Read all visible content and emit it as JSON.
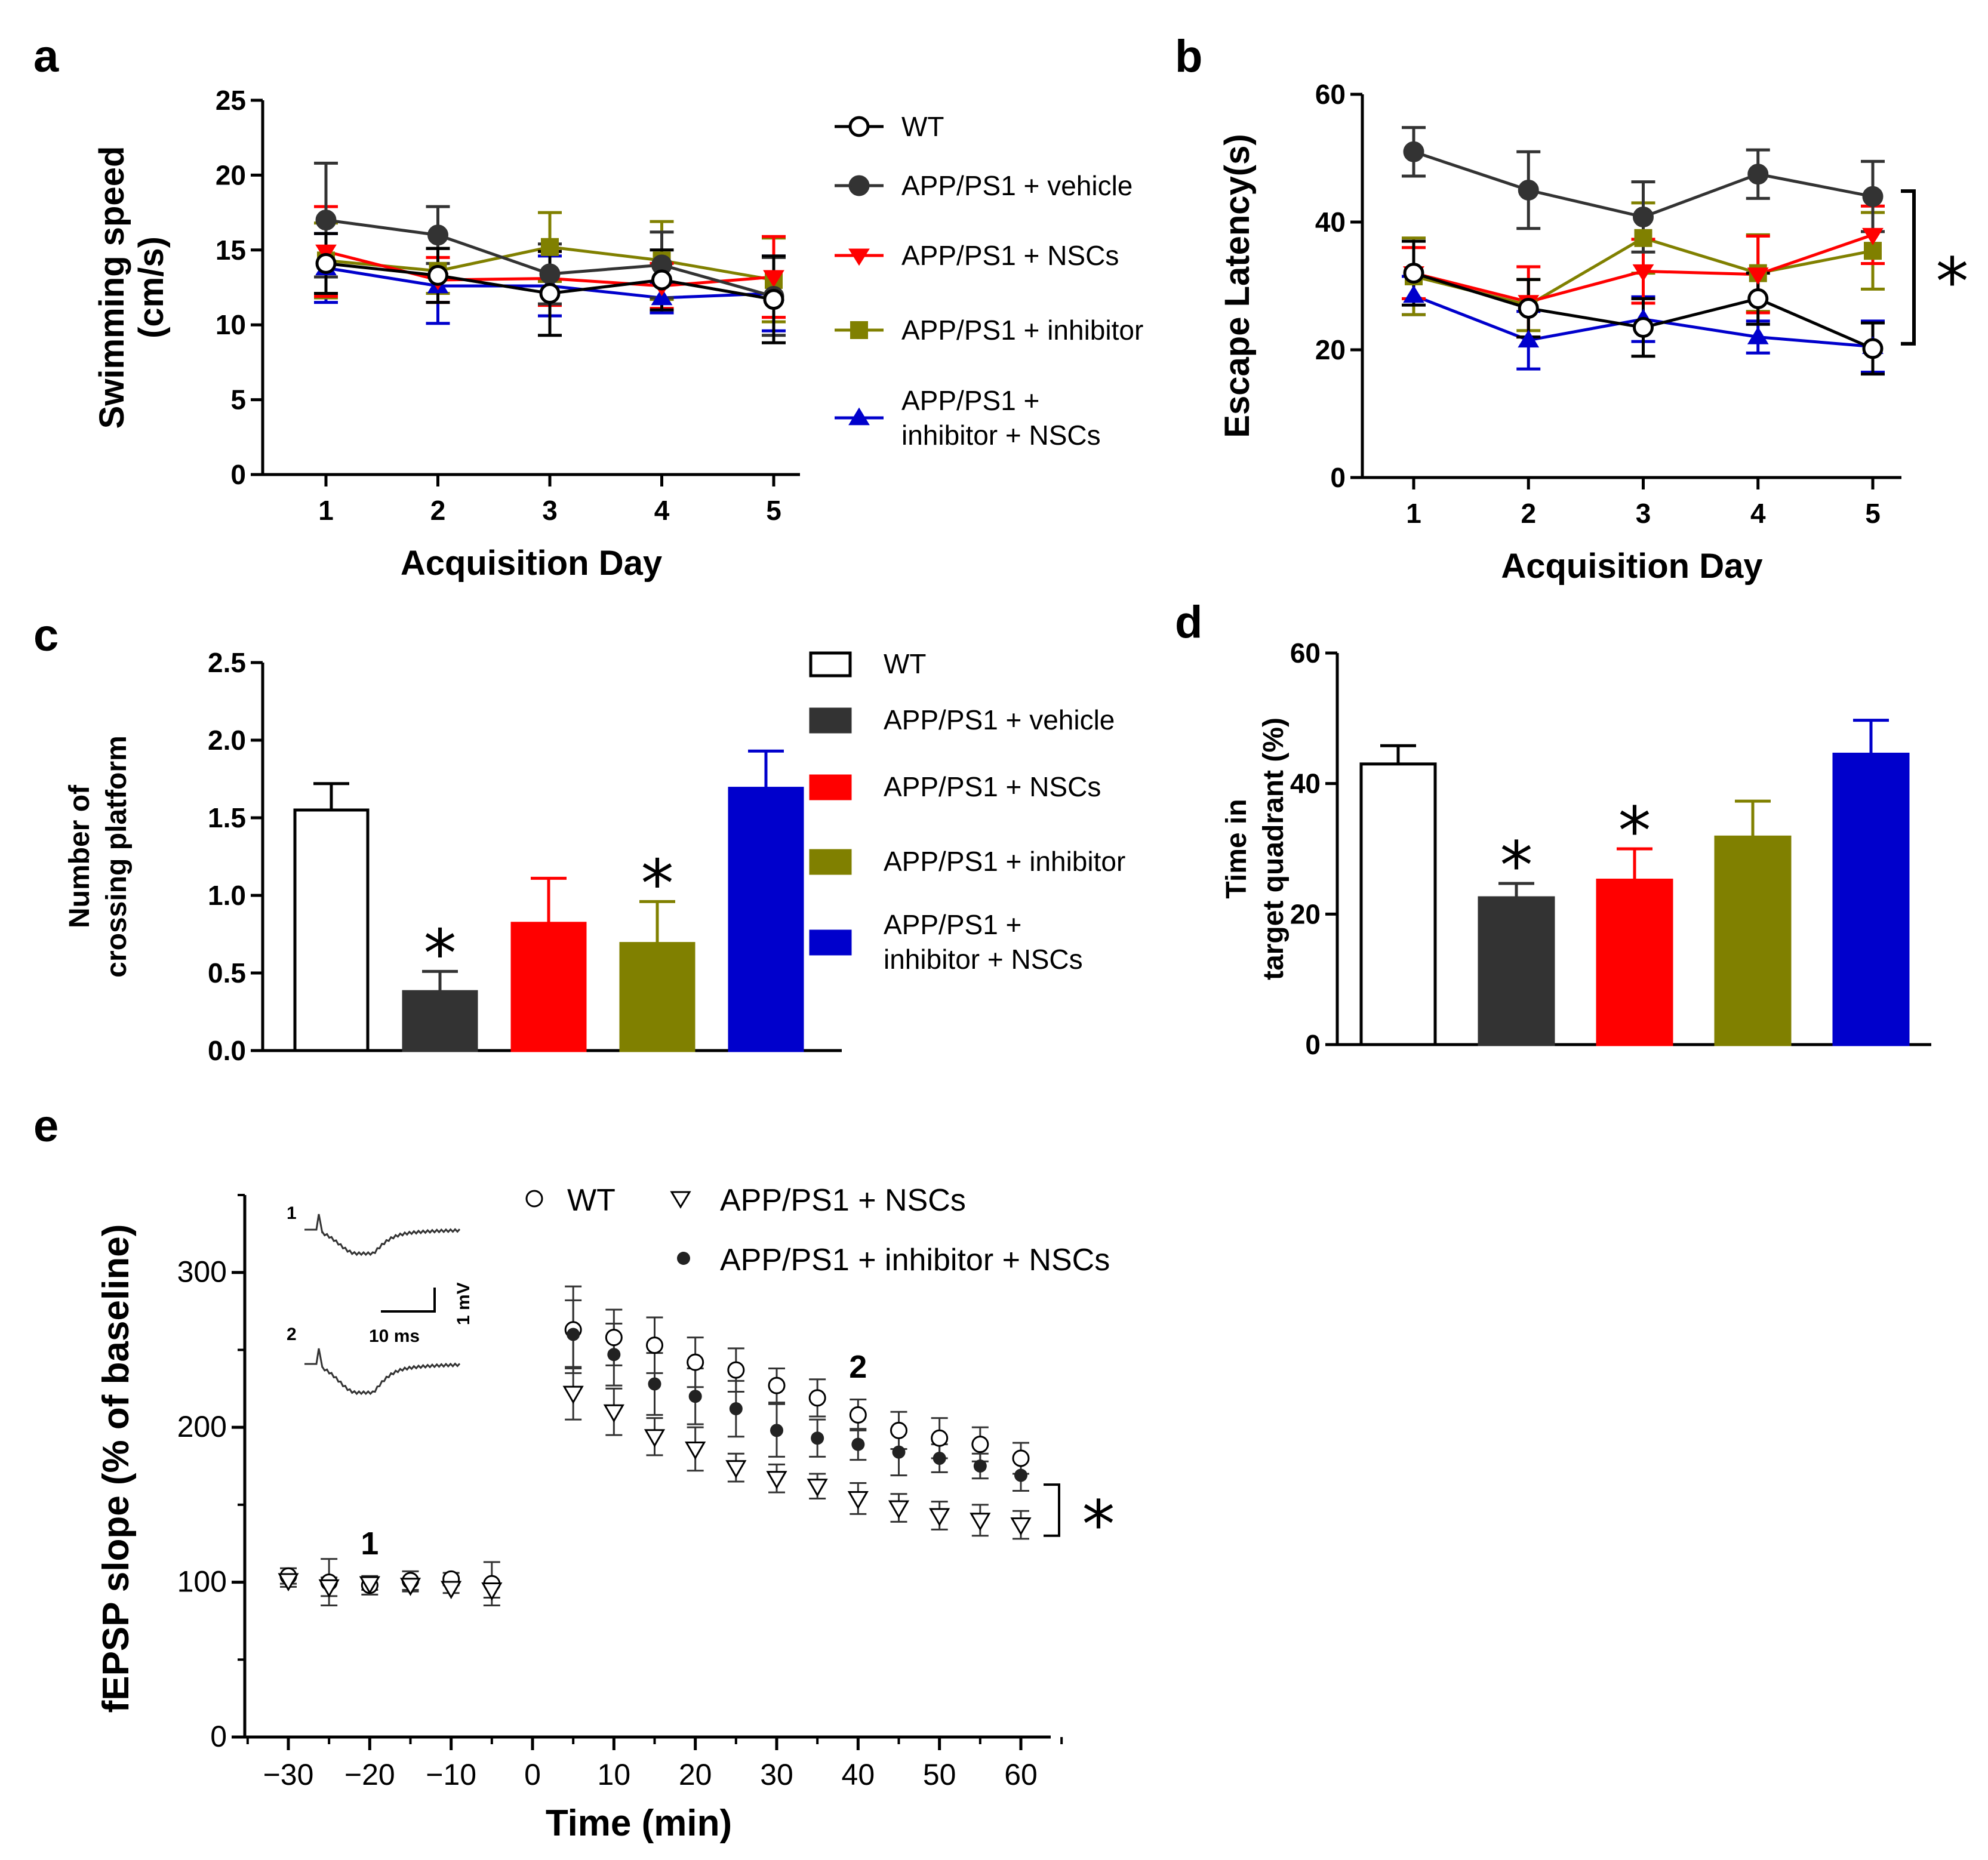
{
  "colors": {
    "wt": "#ffffff",
    "vehicle": "#333333",
    "nscs": "#ff0000",
    "inhibitor": "#808000",
    "inhibitor_nscs": "#0000cc",
    "axis": "#000000"
  },
  "panels": {
    "a": "a",
    "b": "b",
    "c": "c",
    "d": "d",
    "e": "e"
  },
  "legend_groups": [
    "WT",
    "APP/PS1 + vehicle",
    "APP/PS1 + NSCs",
    "APP/PS1 + inhibitor",
    "APP/PS1 +\ninhibitor + NSCs"
  ],
  "legend_e": [
    "WT",
    "APP/PS1 + NSCs",
    "APP/PS1 + inhibitor + NSCs"
  ],
  "significance": "*",
  "chart_data": [
    {
      "panel": "a",
      "type": "line",
      "xlabel": "Acquisition Day",
      "ylabel": "Swimming speed\n(cm/s)",
      "x": [
        1,
        2,
        3,
        4,
        5
      ],
      "xticks": [
        "1",
        "2",
        "3",
        "4",
        "5"
      ],
      "ylim": [
        0,
        25
      ],
      "yticks": [
        0,
        5,
        10,
        15,
        20,
        25
      ],
      "series": [
        {
          "name": "WT",
          "values": [
            14.1,
            13.3,
            12.1,
            13.0,
            11.7
          ],
          "err": [
            2.0,
            1.8,
            2.8,
            2.0,
            2.9
          ]
        },
        {
          "name": "APP/PS1 + vehicle",
          "values": [
            17.0,
            16.0,
            13.4,
            14.0,
            11.9
          ],
          "err": [
            3.8,
            1.9,
            2.0,
            2.2,
            2.6
          ]
        },
        {
          "name": "APP/PS1 + NSCs",
          "values": [
            14.9,
            13.0,
            13.1,
            12.6,
            13.2
          ],
          "err": [
            3.0,
            1.5,
            1.8,
            1.5,
            2.7
          ]
        },
        {
          "name": "APP/PS1 + inhibitor",
          "values": [
            14.3,
            13.6,
            15.2,
            14.3,
            13.0
          ],
          "err": [
            2.5,
            1.5,
            2.3,
            2.6,
            2.8
          ]
        },
        {
          "name": "APP/PS1 + inhibitor + NSCs",
          "values": [
            13.8,
            12.6,
            12.6,
            11.8,
            12.1
          ],
          "err": [
            2.3,
            2.5,
            2.0,
            1.0,
            2.5
          ]
        }
      ]
    },
    {
      "panel": "b",
      "type": "line",
      "xlabel": "Acquisition Day",
      "ylabel": "Escape Latency(s)",
      "x": [
        1,
        2,
        3,
        4,
        5
      ],
      "xticks": [
        "1",
        "2",
        "3",
        "4",
        "5"
      ],
      "ylim": [
        0,
        60
      ],
      "yticks": [
        0,
        20,
        40,
        60
      ],
      "series": [
        {
          "name": "WT",
          "values": [
            32.0,
            26.5,
            23.5,
            28.0,
            20.2
          ],
          "err": [
            5.0,
            4.5,
            4.5,
            4.0,
            4.0
          ]
        },
        {
          "name": "APP/PS1 + vehicle",
          "values": [
            51.0,
            45.0,
            40.8,
            47.5,
            44.0
          ],
          "err": [
            3.8,
            6.0,
            5.5,
            3.8,
            5.5
          ]
        },
        {
          "name": "APP/PS1 + NSCs",
          "values": [
            32.0,
            27.5,
            32.3,
            31.8,
            38.0
          ],
          "err": [
            4.0,
            5.5,
            5.0,
            6.0,
            4.5
          ]
        },
        {
          "name": "APP/PS1 + inhibitor",
          "values": [
            31.5,
            27.0,
            37.5,
            32.0,
            35.5
          ],
          "err": [
            6.0,
            4.0,
            5.5,
            6.0,
            6.0
          ]
        },
        {
          "name": "APP/PS1 + inhibitor + NSCs",
          "values": [
            28.5,
            21.5,
            24.8,
            22.0,
            20.5
          ],
          "err": [
            3.0,
            4.5,
            3.5,
            2.5,
            4.0
          ]
        }
      ],
      "annotation": "*"
    },
    {
      "panel": "c",
      "type": "bar",
      "ylabel": "Number of\ncrossing platform",
      "categories": [
        "WT",
        "APP/PS1 + vehicle",
        "APP/PS1 + NSCs",
        "APP/PS1 + inhibitor",
        "APP/PS1 + inhibitor + NSCs"
      ],
      "values": [
        1.55,
        0.38,
        0.82,
        0.69,
        1.69
      ],
      "err": [
        0.17,
        0.13,
        0.29,
        0.27,
        0.24
      ],
      "stars": [
        false,
        true,
        false,
        true,
        false
      ],
      "ylim": [
        0,
        2.5
      ],
      "yticks": [
        "0.0",
        "0.5",
        "1.0",
        "1.5",
        "2.0",
        "2.5"
      ]
    },
    {
      "panel": "d",
      "type": "bar",
      "ylabel": "Time in\ntarget quadrant (%)",
      "categories": [
        "WT",
        "APP/PS1 + vehicle",
        "APP/PS1 + NSCs",
        "APP/PS1 + inhibitor",
        "APP/PS1 + inhibitor + NSCs"
      ],
      "values": [
        43.0,
        22.5,
        25.2,
        31.8,
        44.5
      ],
      "err": [
        2.8,
        2.2,
        4.8,
        5.5,
        5.2
      ],
      "stars": [
        false,
        true,
        true,
        false,
        false
      ],
      "ylim": [
        0,
        60
      ],
      "yticks": [
        "0",
        "20",
        "40",
        "60"
      ]
    },
    {
      "panel": "e",
      "type": "scatter",
      "xlabel": "Time (min)",
      "ylabel": "fEPSP slope (% of baseline)",
      "xlim": [
        -35,
        65
      ],
      "ylim": [
        0,
        350
      ],
      "xticks": [
        "−30",
        "−20",
        "−10",
        "0",
        "10",
        "20",
        "30",
        "40",
        "50",
        "60"
      ],
      "xtick_values": [
        -30,
        -20,
        -10,
        0,
        10,
        20,
        30,
        40,
        50,
        60
      ],
      "yticks": [
        "0",
        "100",
        "200",
        "300"
      ],
      "ytick_values": [
        0,
        100,
        200,
        300
      ],
      "series": [
        {
          "name": "WT",
          "x": [
            -30,
            -25,
            -20,
            -15,
            -10,
            -5,
            5,
            10,
            15,
            20,
            25,
            30,
            35,
            40,
            45,
            50,
            55,
            60
          ],
          "values": [
            104,
            100,
            98,
            101,
            102,
            99,
            263,
            258,
            253,
            242,
            237,
            227,
            219,
            208,
            198,
            193,
            189,
            180
          ],
          "err": [
            5,
            15,
            6,
            6,
            4,
            14,
            28,
            18,
            18,
            16,
            14,
            11,
            12,
            10,
            12,
            13,
            11,
            10
          ]
        },
        {
          "name": "APP/PS1 + NSCs",
          "x": [
            -30,
            -25,
            -20,
            -15,
            -10,
            -5,
            5,
            10,
            15,
            20,
            25,
            30,
            35,
            40,
            45,
            50,
            55,
            60
          ],
          "values": [
            101,
            97,
            99,
            98,
            96,
            95,
            222,
            210,
            194,
            186,
            174,
            167,
            162,
            154,
            148,
            143,
            140,
            137
          ],
          "err": [
            4,
            6,
            4,
            4,
            3,
            5,
            17,
            15,
            12,
            14,
            9,
            9,
            8,
            10,
            9,
            9,
            10,
            9
          ]
        },
        {
          "name": "APP/PS1 + inhibitor + NSCs",
          "x": [
            5,
            10,
            15,
            20,
            25,
            30,
            35,
            40,
            45,
            50,
            55,
            60
          ],
          "values": [
            260,
            247,
            228,
            220,
            212,
            198,
            193,
            189,
            184,
            180,
            175,
            169
          ],
          "err": [
            22,
            20,
            20,
            18,
            18,
            17,
            12,
            10,
            15,
            9,
            8,
            10
          ]
        }
      ],
      "point_labels": [
        "1",
        "2"
      ],
      "annotation": "*",
      "inset": {
        "scale_time": "10 ms",
        "scale_volt": "1 mV",
        "trace_labels": [
          "1",
          "2"
        ]
      }
    }
  ]
}
